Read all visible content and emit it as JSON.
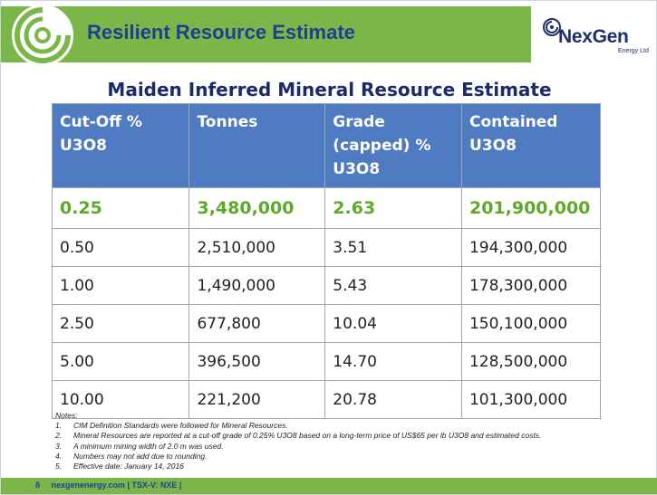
{
  "header": {
    "title": "Resilient Resource Estimate",
    "accent_color": "#7ab648",
    "title_color": "#1f3f93",
    "icon": "concentric-circle-icon"
  },
  "brand": {
    "name": "NexGen",
    "subtitle": "Energy Ltd",
    "icon": "nexgen-logo-mark-icon"
  },
  "table": {
    "title": "Maiden Inferred Mineral Resource Estimate",
    "header_color": "#4f7bc3",
    "highlight_color": "#5fa92a",
    "columns": [
      [
        "Cut-Off %",
        "U3O8"
      ],
      [
        "Tonnes"
      ],
      [
        "Grade",
        "(capped) %",
        "U3O8"
      ],
      [
        "Contained",
        "U3O8"
      ]
    ],
    "rows": [
      [
        "0.25",
        "3,480,000",
        "2.63",
        "201,900,000"
      ],
      [
        "0.50",
        "2,510,000",
        "3.51",
        "194,300,000"
      ],
      [
        "1.00",
        "1,490,000",
        "5.43",
        "178,300,000"
      ],
      [
        "2.50",
        "677,800",
        "10.04",
        "150,100,000"
      ],
      [
        "5.00",
        "396,500",
        "14.70",
        "128,500,000"
      ],
      [
        "10.00",
        "221,200",
        "20.78",
        "101,300,000"
      ]
    ]
  },
  "notes": {
    "heading": "Notes:",
    "items": [
      {
        "num": "1.",
        "text": "CIM Definition Standards were followed for Mineral Resources."
      },
      {
        "num": "2.",
        "text": "Mineral Resources are reported at a cut-off grade of 0.25% U3O8 based on a long-term price of US$65 per lb U3O8 and estimated costs."
      },
      {
        "num": "3.",
        "text": "A minimum mining width of 2.0 m was used."
      },
      {
        "num": "4.",
        "text": "Numbers may not add due to rounding."
      },
      {
        "num": "5.",
        "text": "Effective date: January 14, 2016"
      }
    ]
  },
  "footer": {
    "page_number": "8",
    "text": "nexgenenergy.com | TSX-V: NXE |"
  }
}
